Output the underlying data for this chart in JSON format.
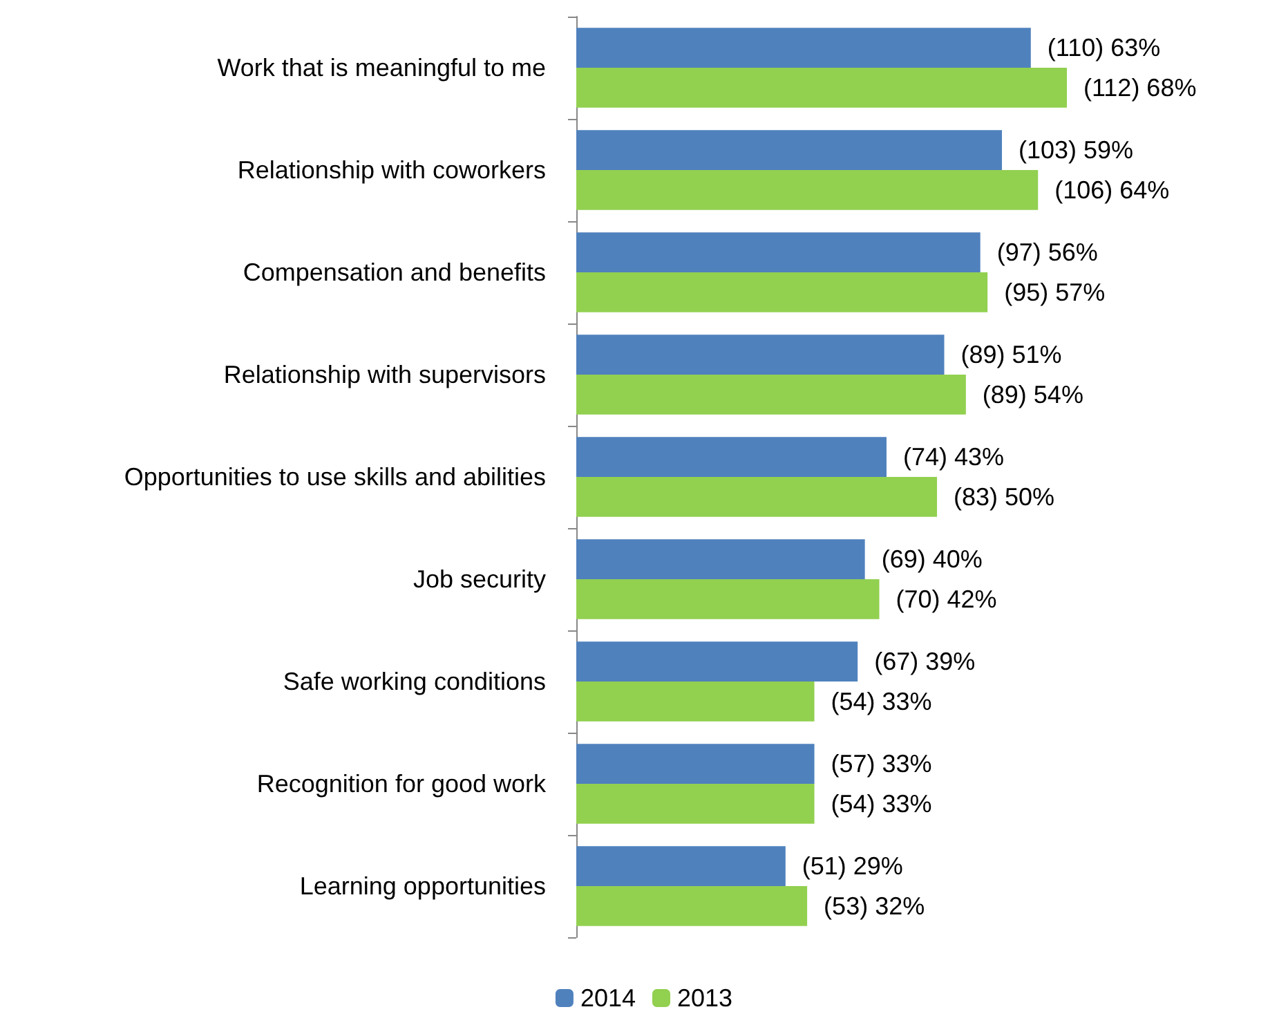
{
  "chart_data": {
    "type": "bar",
    "orientation": "horizontal",
    "categories": [
      "Work that is meaningful to me",
      "Relationship with coworkers",
      "Compensation and benefits",
      "Relationship with supervisors",
      "Opportunities to use skills and abilities",
      "Job security",
      "Safe working conditions",
      "Recognition for good work",
      "Learning opportunities"
    ],
    "series": [
      {
        "name": "2014",
        "color": "#4f81bd",
        "values": [
          63,
          59,
          56,
          51,
          43,
          40,
          39,
          33,
          29
        ],
        "value_labels": [
          "(110) 63%",
          "(103) 59%",
          "(97) 56%",
          "(89) 51%",
          "(74) 43%",
          "(69) 40%",
          "(67) 39%",
          "(57) 33%",
          "(51) 29%"
        ]
      },
      {
        "name": "2013",
        "color": "#92d050",
        "values": [
          68,
          64,
          57,
          54,
          50,
          42,
          33,
          33,
          32
        ],
        "value_labels": [
          "(112) 68%",
          "(106) 64%",
          "(95) 57%",
          "(89) 54%",
          "(83) 50%",
          "(70) 42%",
          "(54) 33%",
          "(54) 33%",
          "(53) 32%"
        ]
      }
    ],
    "legend": "bottom"
  }
}
